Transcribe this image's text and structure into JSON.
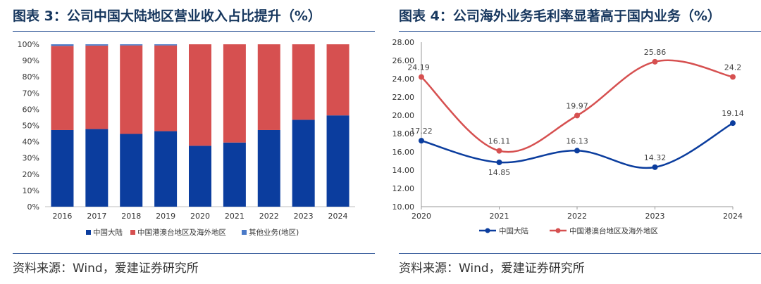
{
  "colors": {
    "blue": "#0b3d9e",
    "red": "#d65050",
    "other": "#4a7ac8",
    "title": "#17375e"
  },
  "left": {
    "title": "图表 3：公司中国大陆地区营业收入占比提升（%）",
    "source": "资料来源：Wind，爱建证券研究所",
    "chart_data": {
      "type": "bar",
      "stacked": true,
      "title": "公司中国大陆地区营业收入占比提升（%）",
      "categories": [
        "2016",
        "2017",
        "2018",
        "2019",
        "2020",
        "2021",
        "2022",
        "2023",
        "2024"
      ],
      "ylim": [
        0,
        100
      ],
      "yticks": [
        "0%",
        "10%",
        "20%",
        "30%",
        "40%",
        "50%",
        "60%",
        "70%",
        "80%",
        "90%",
        "100%"
      ],
      "series": [
        {
          "name": "中国大陆",
          "values": [
            47.2,
            47.8,
            44.8,
            46.5,
            37.5,
            39.5,
            47.2,
            53.5,
            56.2
          ]
        },
        {
          "name": "中国港澳台地区及海外地区",
          "values": [
            51.8,
            51.4,
            54.5,
            52.8,
            62.5,
            60.5,
            52.8,
            46.5,
            43.8
          ]
        },
        {
          "name": "其他业务(地区)",
          "values": [
            1.0,
            0.8,
            0.7,
            0.7,
            0.0,
            0.0,
            0.0,
            0.0,
            0.0
          ]
        }
      ],
      "legend_position": "bottom"
    }
  },
  "right": {
    "title": "图表 4：公司海外业务毛利率显著高于国内业务（%）",
    "source": "资料来源：Wind，爱建证券研究所",
    "chart_data": {
      "type": "line",
      "title": "公司海外业务毛利率显著高于国内业务（%）",
      "x": [
        "2020",
        "2021",
        "2022",
        "2023",
        "2024"
      ],
      "ylim": [
        10,
        28
      ],
      "yticks": [
        "10.00",
        "12.00",
        "14.00",
        "16.00",
        "18.00",
        "20.00",
        "22.00",
        "24.00",
        "26.00",
        "28.00"
      ],
      "series": [
        {
          "name": "中国大陆",
          "values": [
            17.22,
            14.85,
            16.13,
            14.32,
            19.14
          ],
          "labels": [
            "17.22",
            "14.85",
            "16.13",
            "14.32",
            "19.14"
          ]
        },
        {
          "name": "中国港澳台地区及海外地区",
          "values": [
            24.19,
            16.11,
            19.97,
            25.86,
            24.2
          ],
          "labels": [
            "24.19",
            "16.11",
            "19.97",
            "25.86",
            "24.2"
          ]
        }
      ],
      "legend_position": "bottom",
      "smooth": true
    }
  }
}
